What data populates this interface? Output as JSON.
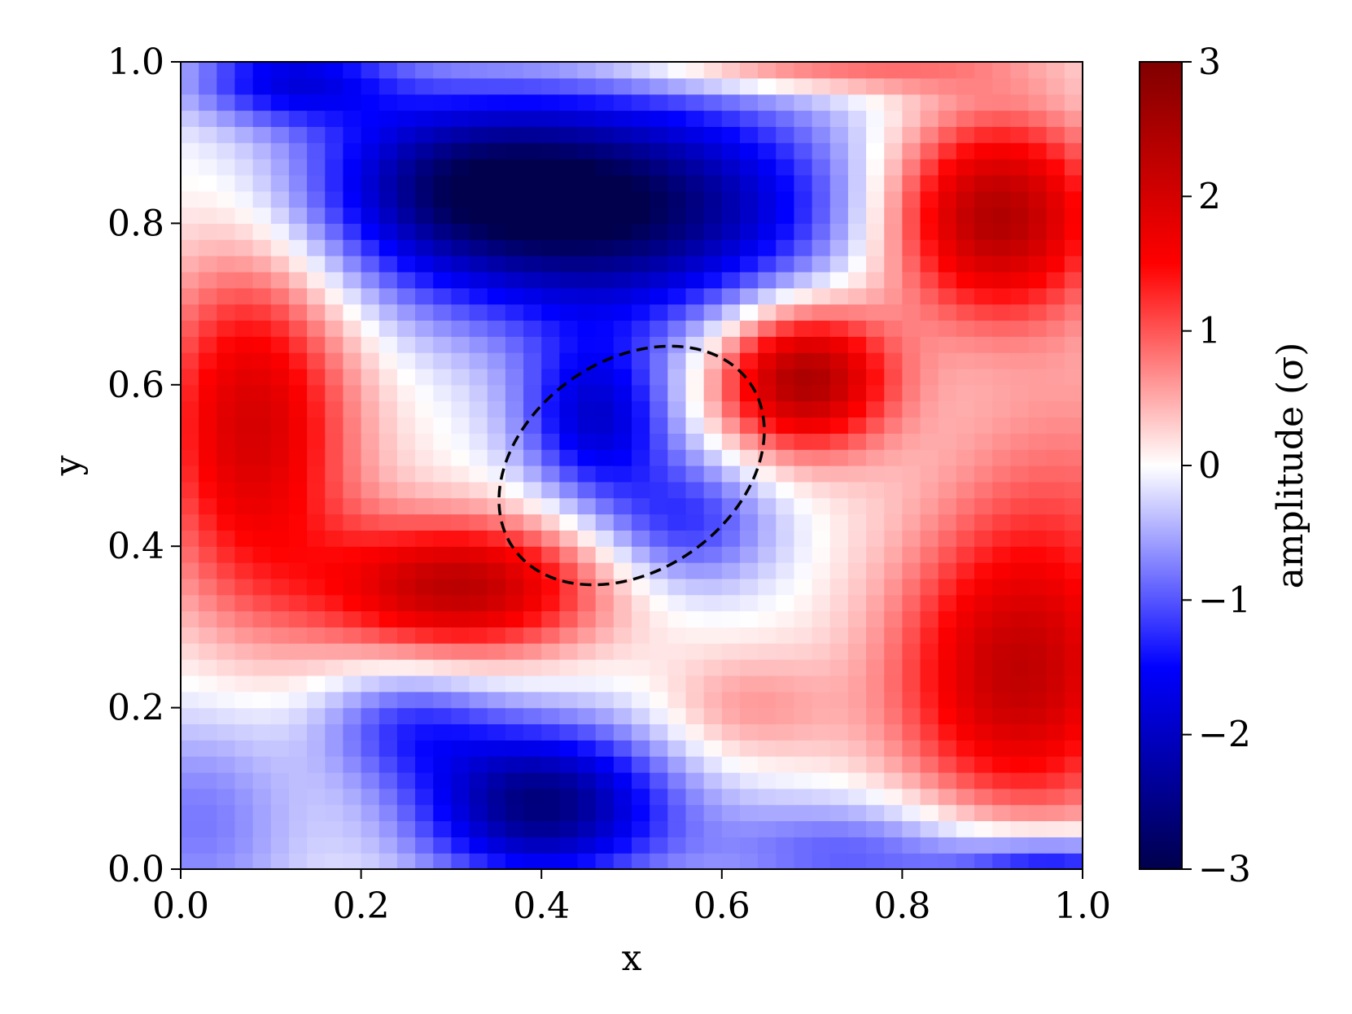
{
  "chart_data": {
    "type": "heatmap",
    "xlabel": "x",
    "ylabel": "y",
    "xlim": [
      0.0,
      1.0
    ],
    "ylim": [
      0.0,
      1.0
    ],
    "x_ticks": [
      "0.0",
      "0.2",
      "0.4",
      "0.6",
      "0.8",
      "1.0"
    ],
    "y_ticks": [
      "0.0",
      "0.2",
      "0.4",
      "0.6",
      "0.8",
      "1.0"
    ],
    "grid": false,
    "grid_resolution": 50,
    "colormap": "seismic",
    "colormap_stops": [
      "#00004c",
      "#0000ff",
      "#ffffff",
      "#ff0000",
      "#800000"
    ],
    "colorbar": {
      "label": "amplitude (σ)",
      "range": [
        -3,
        3
      ],
      "ticks": [
        "3",
        "2",
        "1",
        "0",
        "−1",
        "−2",
        "−3"
      ],
      "tick_values": [
        3,
        2,
        1,
        0,
        -1,
        -2,
        -3
      ]
    },
    "field_components": [
      {
        "x": 0.46,
        "y": 0.82,
        "amplitude": -3.0,
        "sx": 0.19,
        "sy": 0.1
      },
      {
        "x": 0.29,
        "y": 0.86,
        "amplitude": -1.0,
        "sx": 0.11,
        "sy": 0.07
      },
      {
        "x": 0.46,
        "y": 0.56,
        "amplitude": -1.8,
        "sx": 0.06,
        "sy": 0.07
      },
      {
        "x": 0.56,
        "y": 0.43,
        "amplitude": -1.2,
        "sx": 0.07,
        "sy": 0.06
      },
      {
        "x": 0.9,
        "y": 0.81,
        "amplitude": 2.6,
        "sx": 0.09,
        "sy": 0.09
      },
      {
        "x": 0.69,
        "y": 0.61,
        "amplitude": 2.6,
        "sx": 0.07,
        "sy": 0.065
      },
      {
        "x": 0.08,
        "y": 0.55,
        "amplitude": 2.0,
        "sx": 0.08,
        "sy": 0.16
      },
      {
        "x": 0.31,
        "y": 0.35,
        "amplitude": 2.3,
        "sx": 0.11,
        "sy": 0.06
      },
      {
        "x": 0.93,
        "y": 0.24,
        "amplitude": 2.2,
        "sx": 0.1,
        "sy": 0.13
      },
      {
        "x": 1.0,
        "y": 0.5,
        "amplitude": 0.6,
        "sx": 0.12,
        "sy": 0.12
      },
      {
        "x": 0.63,
        "y": 0.2,
        "amplitude": 0.6,
        "sx": 0.07,
        "sy": 0.05
      },
      {
        "x": 0.4,
        "y": 0.08,
        "amplitude": -2.6,
        "sx": 0.1,
        "sy": 0.07
      },
      {
        "x": 0.25,
        "y": 0.18,
        "amplitude": -1.0,
        "sx": 0.07,
        "sy": 0.05
      },
      {
        "x": 0.02,
        "y": 0.06,
        "amplitude": -0.8,
        "sx": 0.08,
        "sy": 0.1
      },
      {
        "x": 0.75,
        "y": 0.02,
        "amplitude": -1.0,
        "sx": 0.12,
        "sy": 0.05
      },
      {
        "x": 0.97,
        "y": 0.0,
        "amplitude": -1.6,
        "sx": 0.08,
        "sy": 0.03
      },
      {
        "x": 0.7,
        "y": 0.99,
        "amplitude": 1.0,
        "sx": 0.15,
        "sy": 0.02
      },
      {
        "x": 0.12,
        "y": 0.98,
        "amplitude": -1.6,
        "sx": 0.08,
        "sy": 0.04
      }
    ],
    "annotations": [
      {
        "type": "dashed-ellipse",
        "cx": 0.5,
        "cy": 0.5,
        "rx": 0.16,
        "ry": 0.13,
        "rotation_deg": -35,
        "color": "#000000"
      }
    ]
  }
}
